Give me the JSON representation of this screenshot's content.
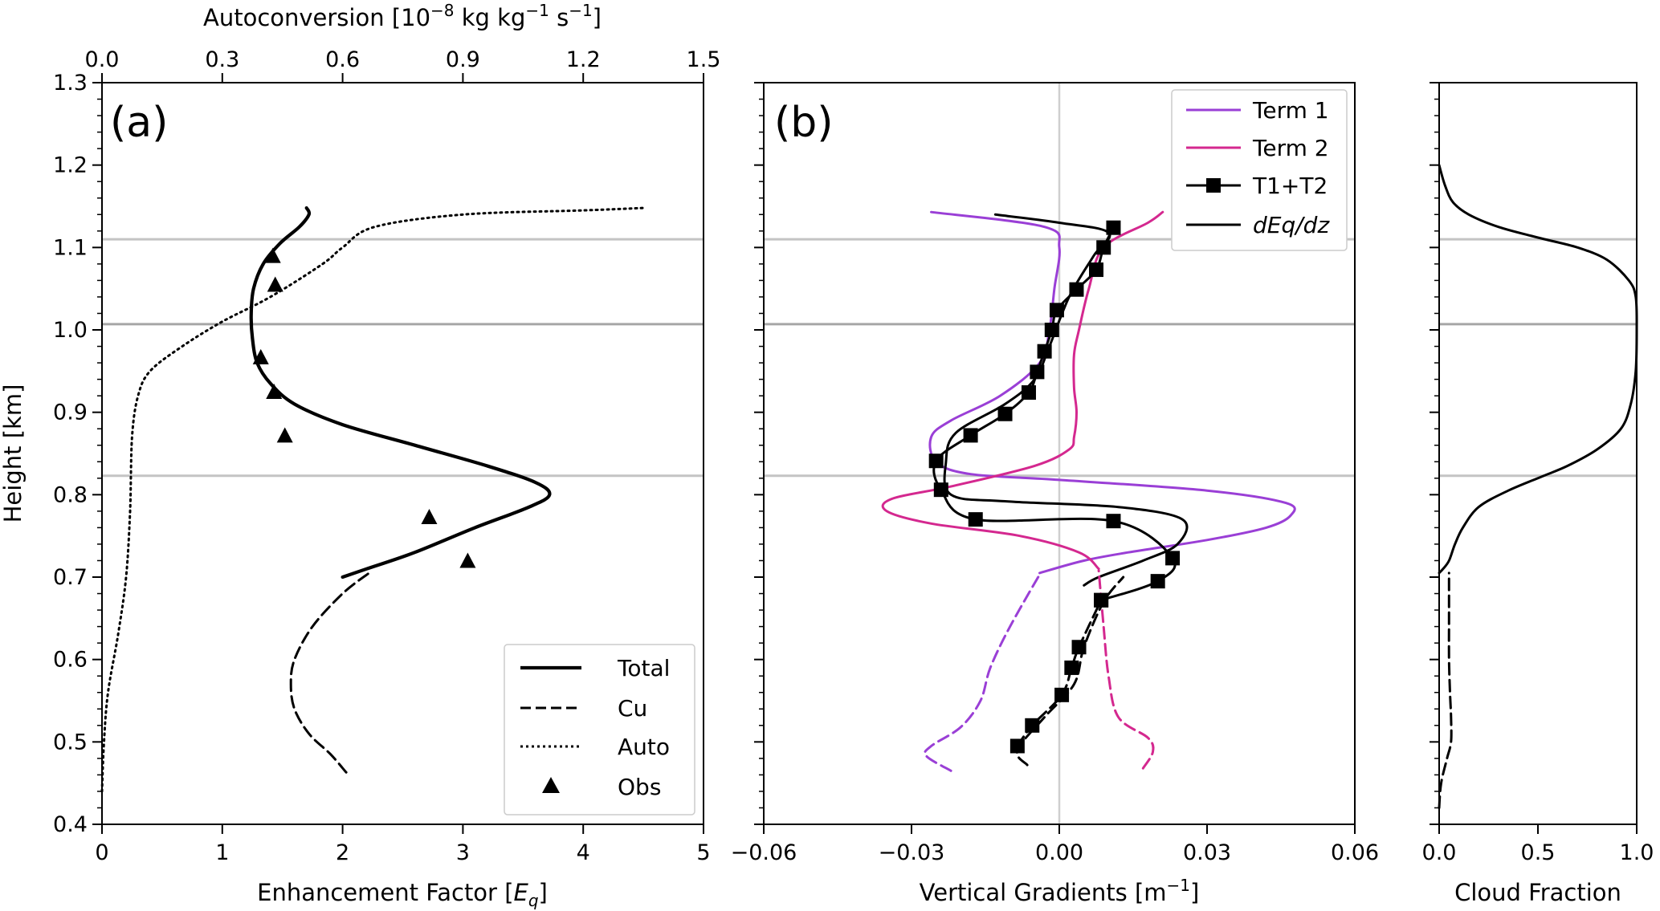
{
  "chart_data": [
    {
      "id": "panel-a",
      "type": "line",
      "panel_label": "(a)",
      "xlabel": "Enhancement Factor [",
      "xlabel_sym": "E",
      "xlabel_sub": "q",
      "xlabel_end": "]",
      "xlim": [
        0,
        5
      ],
      "xticks": [
        "0",
        "1",
        "2",
        "3",
        "4",
        "5"
      ],
      "x2label": "Autoconversion [10",
      "x2label_exp": "−8",
      "x2label_mid": " kg kg",
      "x2label_exp2": "−1",
      "x2label_mid2": " s",
      "x2label_exp3": "−1",
      "x2label_end": "]",
      "x2lim": [
        0,
        1.5
      ],
      "x2ticks": [
        "0.0",
        "0.3",
        "0.6",
        "0.9",
        "1.2",
        "1.5"
      ],
      "ylabel": "Height [km]",
      "ylim": [
        0.4,
        1.3
      ],
      "yticks": [
        "0.4",
        "0.5",
        "0.6",
        "0.7",
        "0.8",
        "0.9",
        "1.0",
        "1.1",
        "1.2",
        "1.3"
      ],
      "hlines": [
        1.11,
        1.007,
        0.823
      ],
      "legend": [
        "Total",
        "Cu",
        "Auto",
        "Obs"
      ],
      "legend_loc": "lower right",
      "series": [
        {
          "key": "total",
          "style": "solid",
          "color": "#000000",
          "width": 4.2,
          "x": [
            2.0,
            2.2,
            2.6,
            3.1,
            3.55,
            3.72,
            3.6,
            3.2,
            2.6,
            2.0,
            1.6,
            1.4,
            1.29,
            1.25,
            1.24,
            1.26,
            1.34,
            1.48,
            1.64,
            1.72,
            1.7
          ],
          "y": [
            0.7,
            0.71,
            0.73,
            0.76,
            0.785,
            0.8,
            0.815,
            0.835,
            0.86,
            0.885,
            0.91,
            0.935,
            0.96,
            0.99,
            1.02,
            1.05,
            1.08,
            1.105,
            1.125,
            1.14,
            1.148
          ]
        },
        {
          "key": "cu",
          "style": "dashed",
          "color": "#000000",
          "width": 3,
          "x": [
            2.03,
            1.9,
            1.72,
            1.6,
            1.57,
            1.6,
            1.75,
            2.0,
            2.22
          ],
          "y": [
            0.463,
            0.485,
            0.51,
            0.54,
            0.57,
            0.6,
            0.64,
            0.68,
            0.705
          ]
        },
        {
          "key": "auto",
          "style": "dotted",
          "color": "#000000",
          "width": 3,
          "x2": [
            0.0,
            0.005,
            0.015,
            0.04,
            0.06,
            0.07,
            0.075,
            0.09,
            0.12,
            0.2,
            0.3,
            0.42,
            0.55,
            0.6,
            0.68,
            0.9,
            1.2,
            1.35
          ],
          "y": [
            0.44,
            0.5,
            0.56,
            0.63,
            0.7,
            0.78,
            0.87,
            0.92,
            0.95,
            0.98,
            1.01,
            1.04,
            1.08,
            1.1,
            1.125,
            1.14,
            1.145,
            1.148
          ]
        }
      ],
      "obs": {
        "marker": "triangle",
        "x": [
          1.42,
          1.44,
          1.32,
          1.43,
          1.52,
          2.72,
          3.04
        ],
        "y": [
          1.09,
          1.055,
          0.967,
          0.925,
          0.872,
          0.773,
          0.72
        ]
      }
    },
    {
      "id": "panel-b",
      "type": "line",
      "panel_label": "(b)",
      "xlabel": "Vertical Gradients [m",
      "xlabel_exp": "−1",
      "xlabel_end": "]",
      "xlim": [
        -0.06,
        0.06
      ],
      "xticks": [
        "−0.06",
        "−0.03",
        "0.00",
        "0.03",
        "0.06"
      ],
      "ylim": [
        0.4,
        1.3
      ],
      "vline": 0,
      "hlines": [
        1.11,
        1.007,
        0.823
      ],
      "legend": [
        "Term 1",
        "Term 2",
        "T1+T2",
        "dEq/dz"
      ],
      "legend_loc": "upper right",
      "series": [
        {
          "key": "term1",
          "style": "solid",
          "color": "#9a3fd6",
          "width": 3,
          "x": [
            -0.026,
            -0.003,
            0.0,
            -0.001,
            -0.002,
            -0.004,
            -0.012,
            -0.022,
            -0.026,
            -0.025,
            -0.018,
            0.0,
            0.03,
            0.046,
            0.047,
            0.042,
            0.03,
            0.014,
            0.005,
            -0.004
          ],
          "y": [
            1.143,
            1.125,
            1.1,
            1.05,
            1.0,
            0.96,
            0.92,
            0.89,
            0.87,
            0.84,
            0.825,
            0.818,
            0.805,
            0.79,
            0.775,
            0.76,
            0.745,
            0.73,
            0.72,
            0.705
          ]
        },
        {
          "key": "term2",
          "style": "solid",
          "color": "#d4288f",
          "width": 3,
          "x": [
            0.021,
            0.018,
            0.009,
            0.006,
            0.004,
            0.003,
            0.003,
            0.0035,
            0.003,
            0.002,
            -0.005,
            -0.022,
            -0.034,
            -0.035,
            -0.026,
            -0.008,
            0.004,
            0.008
          ],
          "y": [
            1.143,
            1.13,
            1.1,
            1.05,
            1.0,
            0.97,
            0.93,
            0.9,
            0.87,
            0.855,
            0.835,
            0.81,
            0.795,
            0.78,
            0.765,
            0.75,
            0.73,
            0.71
          ]
        },
        {
          "key": "t1t2",
          "style": "solid",
          "color": "#000000",
          "width": 3,
          "markers": true,
          "x": [
            0.011,
            0.009,
            0.0075,
            0.0035,
            -0.0005,
            -0.0015,
            -0.003,
            -0.0045,
            -0.0062,
            -0.011,
            -0.018,
            -0.025,
            -0.024,
            -0.017,
            0.011,
            0.023,
            0.02,
            0.0085
          ],
          "y": [
            1.124,
            1.1,
            1.073,
            1.049,
            1.024,
            1.0,
            0.974,
            0.949,
            0.924,
            0.898,
            0.872,
            0.841,
            0.806,
            0.77,
            0.768,
            0.723,
            0.695,
            0.672
          ]
        },
        {
          "key": "deqdz",
          "style": "solid",
          "color": "#000000",
          "width": 3,
          "x": [
            -0.013,
            0.0,
            0.01,
            0.007,
            0.002,
            -0.002,
            -0.005,
            -0.011,
            -0.021,
            -0.023,
            -0.022,
            -0.011,
            0.012,
            0.025,
            0.024,
            0.017,
            0.008,
            0.005
          ],
          "y": [
            1.14,
            1.13,
            1.118,
            1.09,
            1.04,
            0.98,
            0.94,
            0.91,
            0.875,
            0.84,
            0.8,
            0.792,
            0.785,
            0.77,
            0.74,
            0.72,
            0.7,
            0.69
          ]
        },
        {
          "key": "term1_dash",
          "style": "dashed",
          "color": "#9a3fd6",
          "width": 3,
          "x": [
            -0.022,
            -0.027,
            -0.026,
            -0.02,
            -0.016,
            -0.014,
            -0.01,
            -0.004
          ],
          "y": [
            0.465,
            0.483,
            0.495,
            0.518,
            0.55,
            0.59,
            0.64,
            0.703
          ]
        },
        {
          "key": "term2_dash",
          "style": "dashed",
          "color": "#d4288f",
          "width": 3,
          "x": [
            0.017,
            0.019,
            0.018,
            0.012,
            0.01,
            0.009,
            0.008
          ],
          "y": [
            0.468,
            0.488,
            0.505,
            0.53,
            0.58,
            0.64,
            0.708
          ]
        },
        {
          "key": "t1t2_dash",
          "style": "dashed",
          "color": "#000000",
          "width": 3,
          "markers": true,
          "x": [
            -0.0085,
            -0.0055,
            0.0005,
            0.0025,
            0.004,
            0.0085
          ],
          "y": [
            0.495,
            0.52,
            0.557,
            0.59,
            0.615,
            0.672
          ]
        },
        {
          "key": "deqdz_dash",
          "style": "dashed",
          "color": "#000000",
          "width": 3,
          "x": [
            -0.0065,
            -0.0085,
            -0.003,
            0.003,
            0.005,
            0.009,
            0.013
          ],
          "y": [
            0.472,
            0.49,
            0.53,
            0.57,
            0.615,
            0.67,
            0.7
          ]
        }
      ]
    },
    {
      "id": "panel-c",
      "type": "line",
      "xlabel": "Cloud Fraction",
      "xlim": [
        0,
        1
      ],
      "xticks": [
        "0.0",
        "0.5",
        "1.0"
      ],
      "ylim": [
        0.4,
        1.3
      ],
      "hlines": [
        1.11,
        1.007,
        0.823
      ],
      "series": [
        {
          "key": "cf",
          "style": "solid",
          "color": "#000000",
          "width": 3,
          "x": [
            0.0,
            0.02,
            0.05,
            0.08,
            0.12,
            0.2,
            0.35,
            0.52,
            0.65,
            0.8,
            0.92,
            0.97,
            0.995,
            1.0,
            0.995,
            0.96,
            0.85,
            0.7,
            0.5,
            0.3,
            0.15,
            0.07,
            0.03,
            0.0
          ],
          "y": [
            0.705,
            0.71,
            0.72,
            0.74,
            0.76,
            0.785,
            0.805,
            0.822,
            0.835,
            0.855,
            0.88,
            0.91,
            0.95,
            1.0,
            1.04,
            1.06,
            1.085,
            1.1,
            1.112,
            1.125,
            1.14,
            1.155,
            1.175,
            1.2
          ]
        },
        {
          "key": "cf_dash",
          "style": "dashed",
          "color": "#000000",
          "width": 3,
          "x": [
            0.0,
            0.01,
            0.04,
            0.06,
            0.06,
            0.055,
            0.05,
            0.05,
            0.05
          ],
          "y": [
            0.42,
            0.45,
            0.48,
            0.5,
            0.53,
            0.56,
            0.6,
            0.65,
            0.705
          ]
        }
      ]
    }
  ]
}
